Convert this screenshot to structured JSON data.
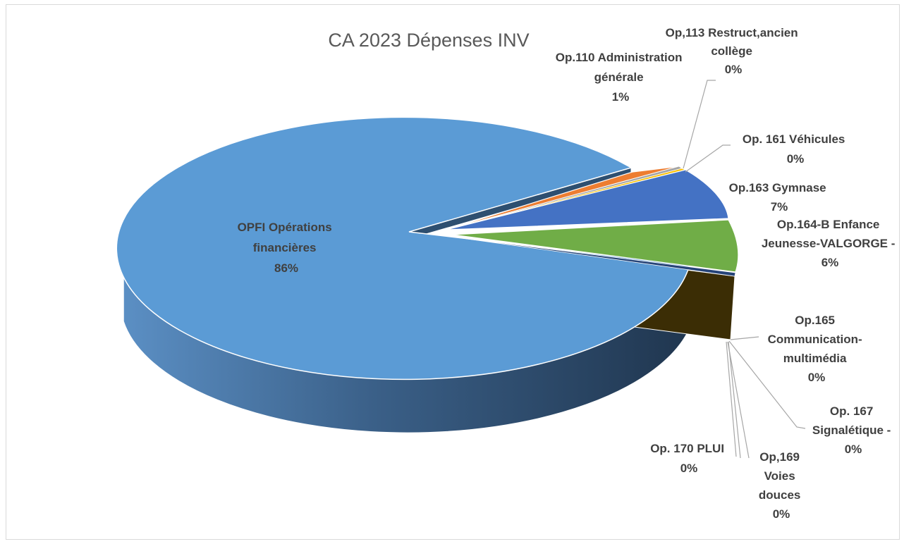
{
  "chart_data": {
    "type": "pie",
    "title": "CA 2023 Dépenses INV",
    "style": "3d-exploded",
    "slices": [
      {
        "key": "op110",
        "lines": [
          "Op.110 Administration",
          "générale"
        ],
        "pct_label": "1%",
        "value": 1,
        "color": "#ed7d31"
      },
      {
        "key": "op113",
        "lines": [
          "Op,113 Restruct,ancien",
          "collège"
        ],
        "pct_label": "0%",
        "value": 0.2,
        "color": "#a5a5a5"
      },
      {
        "key": "op161",
        "lines": [
          "Op. 161 Véhicules"
        ],
        "pct_label": "0%",
        "value": 0.2,
        "color": "#ffc000"
      },
      {
        "key": "op163",
        "lines": [
          "Op.163 Gymnase"
        ],
        "pct_label": "7%",
        "value": 7,
        "color": "#4472c4"
      },
      {
        "key": "op164",
        "lines": [
          "Op.164-B Enfance",
          "Jeunesse-VALGORGE -"
        ],
        "pct_label": "6%",
        "value": 6,
        "color": "#70ad47"
      },
      {
        "key": "op165",
        "lines": [
          "Op.165",
          "Communication-",
          "multimédia"
        ],
        "pct_label": "0%",
        "value": 0.1,
        "color": "#264478"
      },
      {
        "key": "op167",
        "lines": [
          "Op. 167",
          "Signalétique -"
        ],
        "pct_label": "0%",
        "value": 0.1,
        "color": "#9e480e"
      },
      {
        "key": "op169",
        "lines": [
          "Op,169",
          "Voies",
          "douces"
        ],
        "pct_label": "0%",
        "value": 0.1,
        "color": "#636363"
      },
      {
        "key": "op170",
        "lines": [
          "Op. 170 PLUI"
        ],
        "pct_label": "0%",
        "value": 0.1,
        "color": "#997300"
      },
      {
        "key": "opfi",
        "lines": [
          "OPFI Opérations",
          "financières"
        ],
        "pct_label": "86%",
        "value": 86,
        "color": "#5b9bd5"
      }
    ]
  }
}
